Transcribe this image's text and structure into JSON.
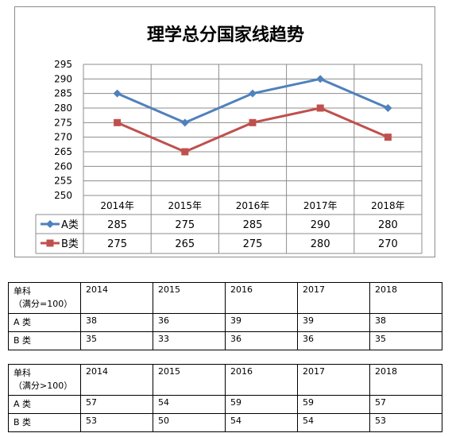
{
  "chart_data": {
    "type": "line",
    "title": "理学总分国家线趋势",
    "categories": [
      "2014年",
      "2015年",
      "2016年",
      "2017年",
      "2018年"
    ],
    "series": [
      {
        "name": "A类",
        "values": [
          285,
          275,
          285,
          290,
          280
        ],
        "color": "#4f81bd",
        "marker": "diamond"
      },
      {
        "name": "B类",
        "values": [
          275,
          265,
          275,
          280,
          270
        ],
        "color": "#c0504d",
        "marker": "square"
      }
    ],
    "ylim": [
      250,
      295
    ],
    "yticks": [
      250,
      255,
      260,
      265,
      270,
      275,
      280,
      285,
      290,
      295
    ],
    "grid": true,
    "legend": "data-table"
  },
  "tables": [
    {
      "header_line1": "单科",
      "header_line2": "（满分=100）",
      "years": [
        "2014",
        "2015",
        "2016",
        "2017",
        "2018"
      ],
      "rows": [
        {
          "label": "A 类",
          "values": [
            "38",
            "36",
            "39",
            "39",
            "38"
          ]
        },
        {
          "label": "B 类",
          "values": [
            "35",
            "33",
            "36",
            "36",
            "35"
          ]
        }
      ]
    },
    {
      "header_line1": "单科",
      "header_line2": "（满分>100）",
      "years": [
        "2014",
        "2015",
        "2016",
        "2017",
        "2018"
      ],
      "rows": [
        {
          "label": "A 类",
          "values": [
            "57",
            "54",
            "59",
            "59",
            "57"
          ]
        },
        {
          "label": "B 类",
          "values": [
            "53",
            "50",
            "54",
            "54",
            "53"
          ]
        }
      ]
    }
  ]
}
